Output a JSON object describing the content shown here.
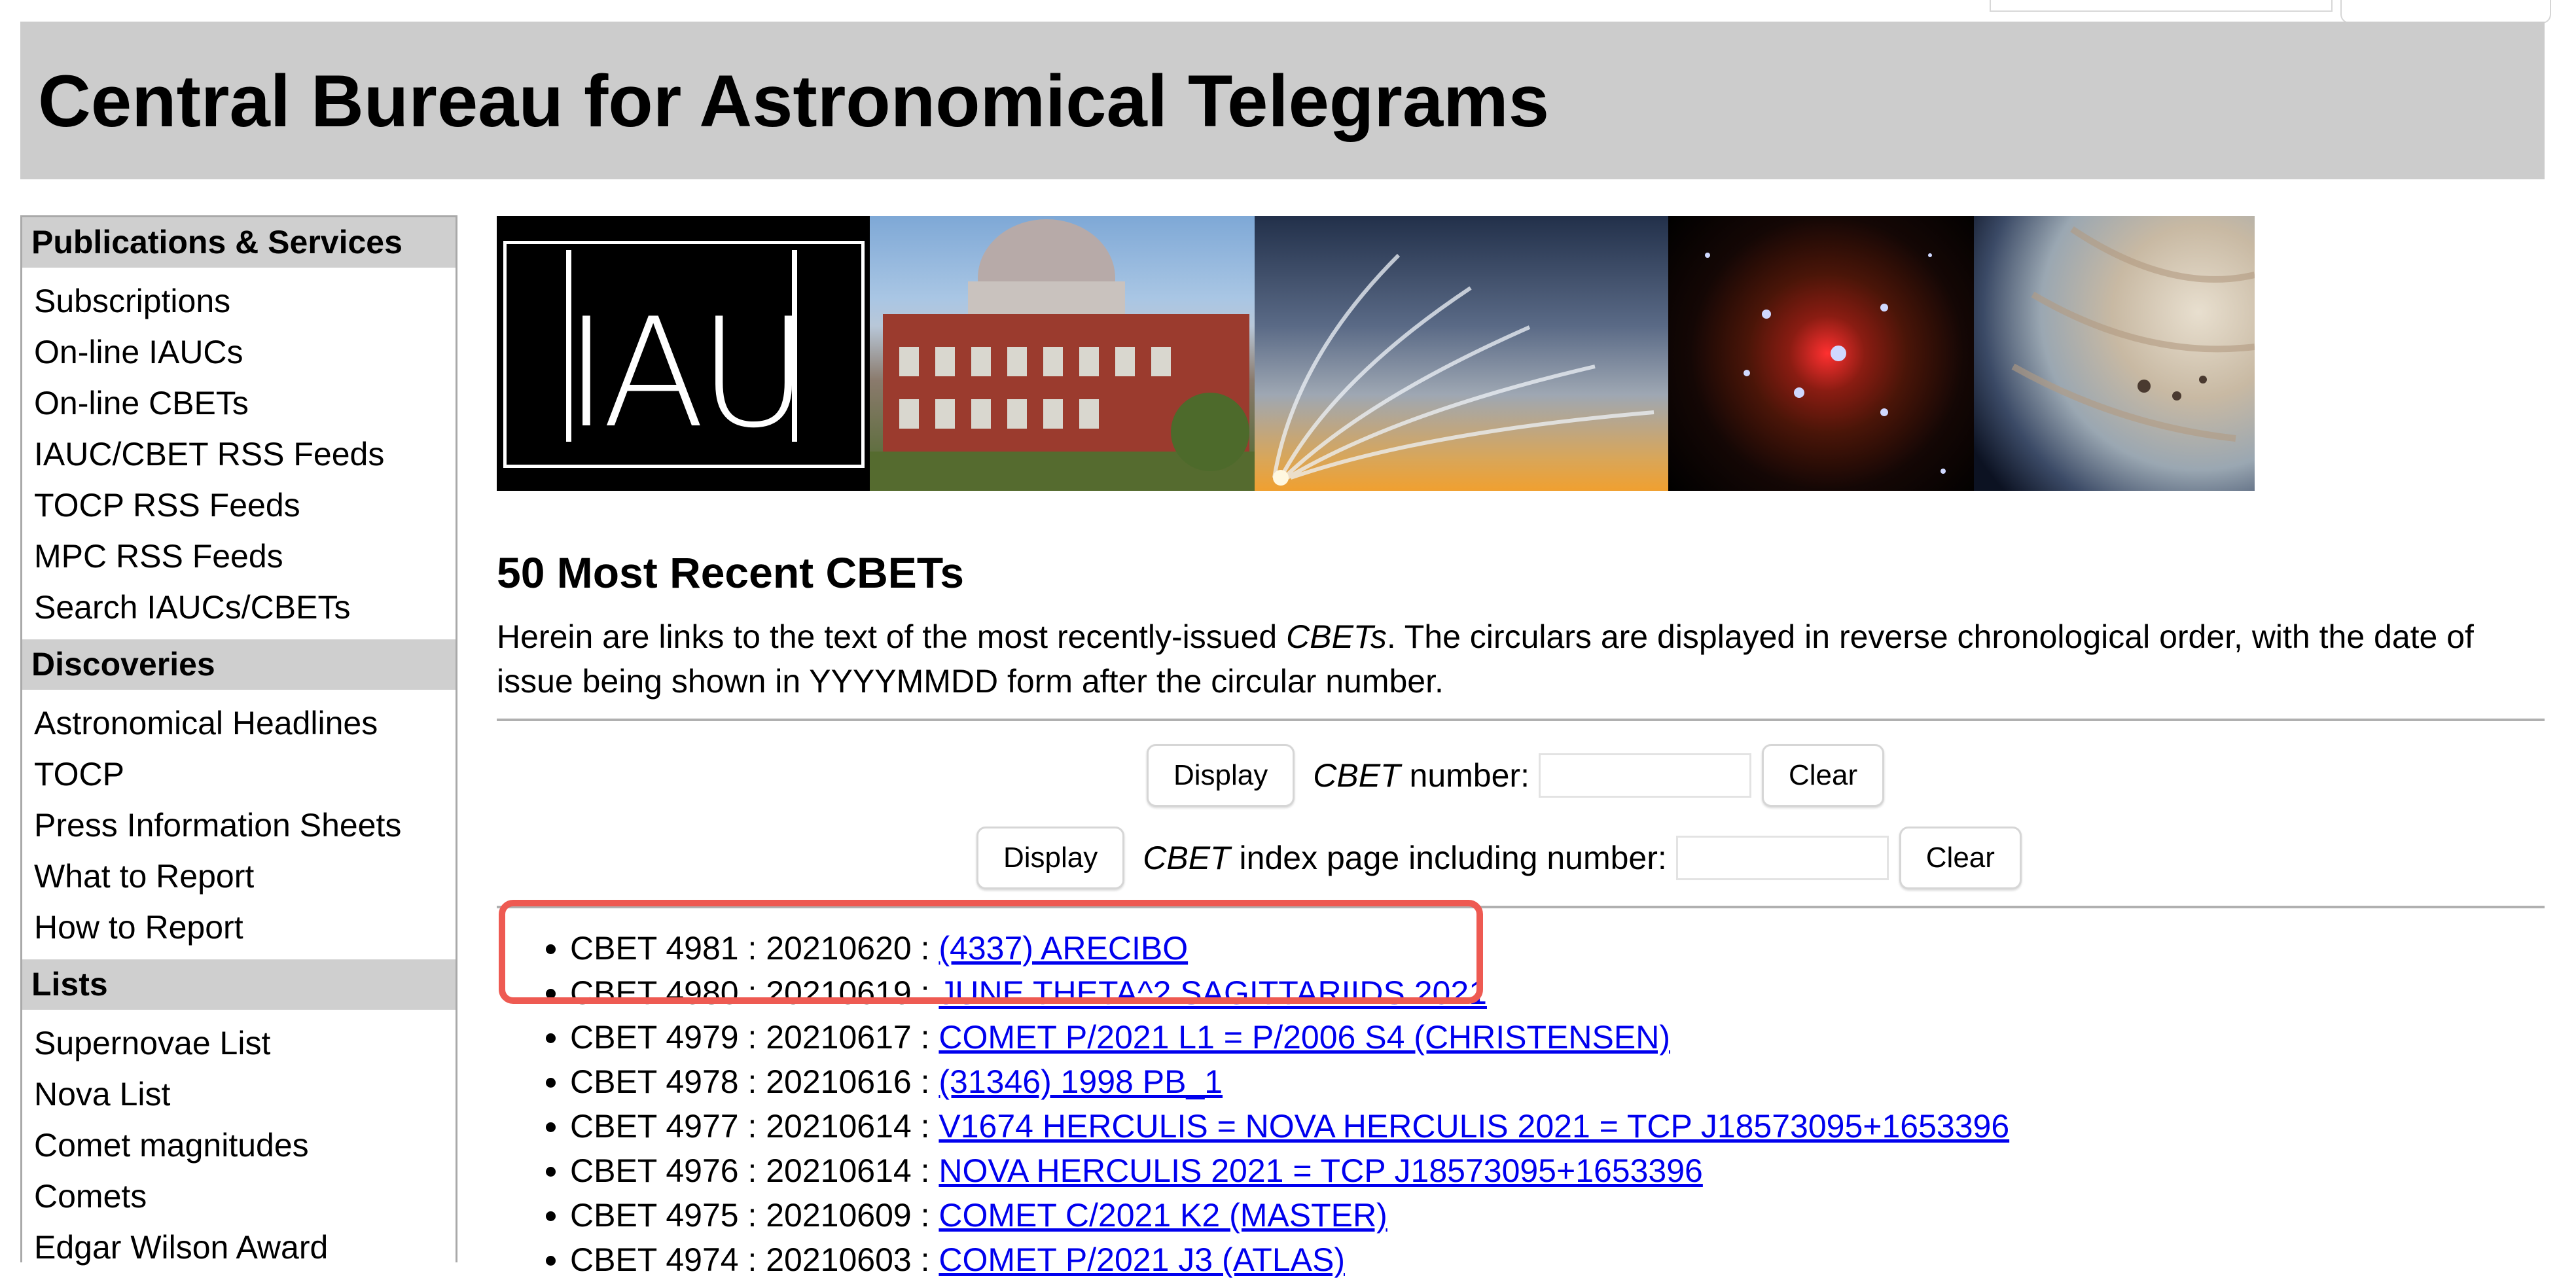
{
  "header": {
    "title": "Central Bureau for Astronomical Telegrams"
  },
  "sidebar": {
    "sections": [
      {
        "title": "Publications & Services",
        "items": [
          "Subscriptions",
          "On-line IAUCs",
          "On-line CBETs",
          "IAUC/CBET RSS Feeds",
          "TOCP RSS Feeds",
          "MPC RSS Feeds",
          "Search IAUCs/CBETs"
        ]
      },
      {
        "title": "Discoveries",
        "items": [
          "Astronomical Headlines",
          "TOCP",
          "Press Information Sheets",
          "What to Report",
          "How to Report"
        ]
      },
      {
        "title": "Lists",
        "items": [
          "Supernovae List",
          "Nova List",
          "Comet magnitudes",
          "Comets",
          "Edgar Wilson Award"
        ]
      }
    ]
  },
  "banner": {
    "logo_text": "IAU"
  },
  "main": {
    "heading": "50 Most Recent CBETs",
    "intro_before": "Herein are links to the text of the most recently-issued ",
    "intro_em": "CBETs",
    "intro_after": ". The circulars are displayed in reverse chronological order, with the date of issue being shown in YYYYMMDD form after the circular number."
  },
  "forms": {
    "display_label": "Display",
    "clear_label": "Clear",
    "cbet_em": "CBET",
    "number_label": " number:",
    "index_label": " index page including number:"
  },
  "cbets": [
    {
      "prefix": "CBET 4981 : 20210620 : ",
      "title": "(4337) ARECIBO"
    },
    {
      "prefix": "CBET 4980 : 20210619 : ",
      "title": "JUNE THETA^2 SAGITTARIIDS 2021"
    },
    {
      "prefix": "CBET 4979 : 20210617 : ",
      "title": "COMET P/2021 L1 = P/2006 S4 (CHRISTENSEN)"
    },
    {
      "prefix": "CBET 4978 : 20210616 : ",
      "title": "(31346) 1998 PB_1"
    },
    {
      "prefix": "CBET 4977 : 20210614 : ",
      "title": "V1674 HERCULIS = NOVA HERCULIS 2021 = TCP J18573095+1653396"
    },
    {
      "prefix": "CBET 4976 : 20210614 : ",
      "title": "NOVA HERCULIS 2021 = TCP J18573095+1653396"
    },
    {
      "prefix": "CBET 4975 : 20210609 : ",
      "title": "COMET C/2021 K2 (MASTER)"
    },
    {
      "prefix": "CBET 4974 : 20210603 : ",
      "title": "COMET P/2021 J3 (ATLAS)"
    }
  ],
  "colors": {
    "link": "#0000ee",
    "highlight": "#ee5a52",
    "masthead": "#cccccc"
  }
}
